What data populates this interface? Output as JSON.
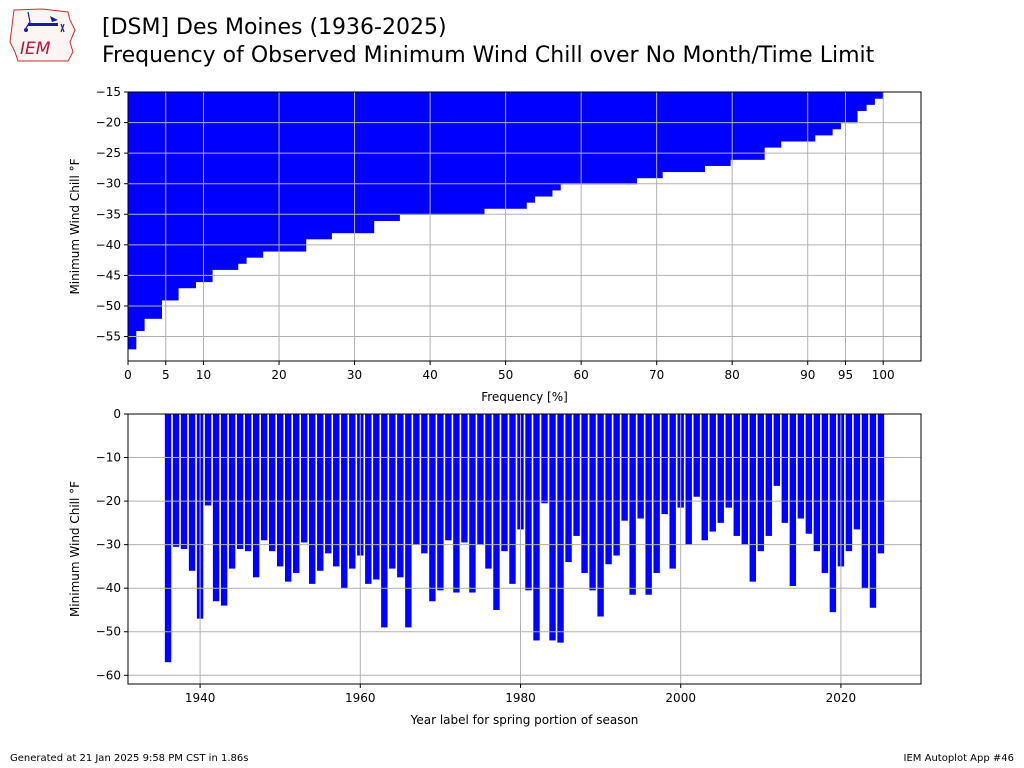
{
  "header": {
    "logo_text": "IEM",
    "title_line1": "[DSM] Des Moines (1936-2025)",
    "title_line2": "Frequency of Observed Minimum Wind Chill over No Month/Time Limit"
  },
  "footer": {
    "generated": "Generated at 21 Jan 2025 9:58 PM CST in 1.86s",
    "app": "IEM Autoplot App #46"
  },
  "colors": {
    "bar": "#0000ff",
    "grid": "#b0b0b0"
  },
  "chart_data": [
    {
      "type": "bar",
      "orientation": "horizontal",
      "xlabel": "Frequency [%]",
      "ylabel": "Minimum Wind Chill °F",
      "xlim": [
        0,
        105
      ],
      "ylim": [
        -59,
        -15
      ],
      "xticks": [
        0,
        5,
        10,
        20,
        30,
        40,
        50,
        60,
        70,
        80,
        90,
        95,
        100
      ],
      "yticks": [
        -15,
        -20,
        -25,
        -30,
        -35,
        -40,
        -45,
        -50,
        -55
      ],
      "grid": true,
      "y": [
        -57,
        -56,
        -55,
        -54,
        -53,
        -52,
        -51,
        -50,
        -49,
        -48,
        -47,
        -46,
        -45,
        -44,
        -43,
        -42,
        -41,
        -40,
        -39,
        -38,
        -37,
        -36,
        -35,
        -34,
        -33,
        -32,
        -31,
        -30,
        -29,
        -28,
        -27,
        -26,
        -25,
        -24,
        -23,
        -22,
        -21,
        -20,
        -19,
        -18,
        -17,
        -16
      ],
      "values": [
        1.1,
        1.1,
        1.1,
        2.2,
        2.2,
        4.5,
        4.5,
        4.5,
        6.7,
        6.7,
        9.0,
        11.2,
        11.2,
        14.6,
        15.7,
        17.9,
        23.6,
        23.6,
        27.0,
        32.6,
        32.6,
        36.0,
        47.2,
        52.8,
        53.9,
        56.2,
        57.3,
        67.4,
        70.8,
        76.4,
        79.8,
        84.3,
        84.3,
        86.5,
        91.0,
        93.3,
        94.4,
        96.6,
        96.6,
        97.8,
        98.9,
        100.0
      ]
    },
    {
      "type": "bar",
      "xlabel": "Year label for spring portion of season",
      "ylabel": "Minimum Wind Chill °F",
      "xlim": [
        1931,
        2030
      ],
      "ylim": [
        -62,
        0
      ],
      "xticks": [
        1940,
        1960,
        1980,
        2000,
        2020
      ],
      "yticks": [
        0,
        -10,
        -20,
        -30,
        -40,
        -50,
        -60
      ],
      "grid": true,
      "x": [
        1936,
        1937,
        1938,
        1939,
        1940,
        1941,
        1942,
        1943,
        1944,
        1945,
        1946,
        1947,
        1948,
        1949,
        1950,
        1951,
        1952,
        1953,
        1954,
        1955,
        1956,
        1957,
        1958,
        1959,
        1960,
        1961,
        1962,
        1963,
        1964,
        1965,
        1966,
        1967,
        1968,
        1969,
        1970,
        1971,
        1972,
        1973,
        1974,
        1975,
        1976,
        1977,
        1978,
        1979,
        1980,
        1981,
        1982,
        1983,
        1984,
        1985,
        1986,
        1987,
        1988,
        1989,
        1990,
        1991,
        1992,
        1993,
        1994,
        1995,
        1996,
        1997,
        1998,
        1999,
        2000,
        2001,
        2002,
        2003,
        2004,
        2005,
        2006,
        2007,
        2008,
        2009,
        2010,
        2011,
        2012,
        2013,
        2014,
        2015,
        2016,
        2017,
        2018,
        2019,
        2020,
        2021,
        2022,
        2023,
        2024,
        2025
      ],
      "values": [
        -57,
        -30.5,
        -31,
        -36,
        -47,
        -21,
        -43,
        -44,
        -35.5,
        -31,
        -31.5,
        -37.5,
        -29,
        -31.5,
        -35,
        -38.5,
        -36.5,
        -29.5,
        -39,
        -36,
        -32,
        -35,
        -40,
        -35.5,
        -32.5,
        -39,
        -38,
        -49,
        -35.5,
        -37.5,
        -49,
        -30,
        -32,
        -43,
        -40.5,
        -29,
        -41,
        -29.5,
        -41,
        -30,
        -35.5,
        -45,
        -31.5,
        -39,
        -26.5,
        -40.5,
        -52,
        -20.5,
        -52,
        -52.5,
        -34,
        -28,
        -36.5,
        -40.5,
        -46.5,
        -34.5,
        -32.5,
        -24.5,
        -41.5,
        -24,
        -41.5,
        -36.5,
        -23,
        -35.5,
        -21.5,
        -30,
        -19,
        -29,
        -27,
        -25,
        -21.5,
        -28,
        -30,
        -38.5,
        -31.5,
        -28,
        -16.5,
        -25,
        -39.5,
        -24,
        -27.5,
        -31.5,
        -36.5,
        -45.5,
        -35,
        -31.5,
        -26.5,
        -40,
        -44.5,
        -32
      ]
    }
  ]
}
